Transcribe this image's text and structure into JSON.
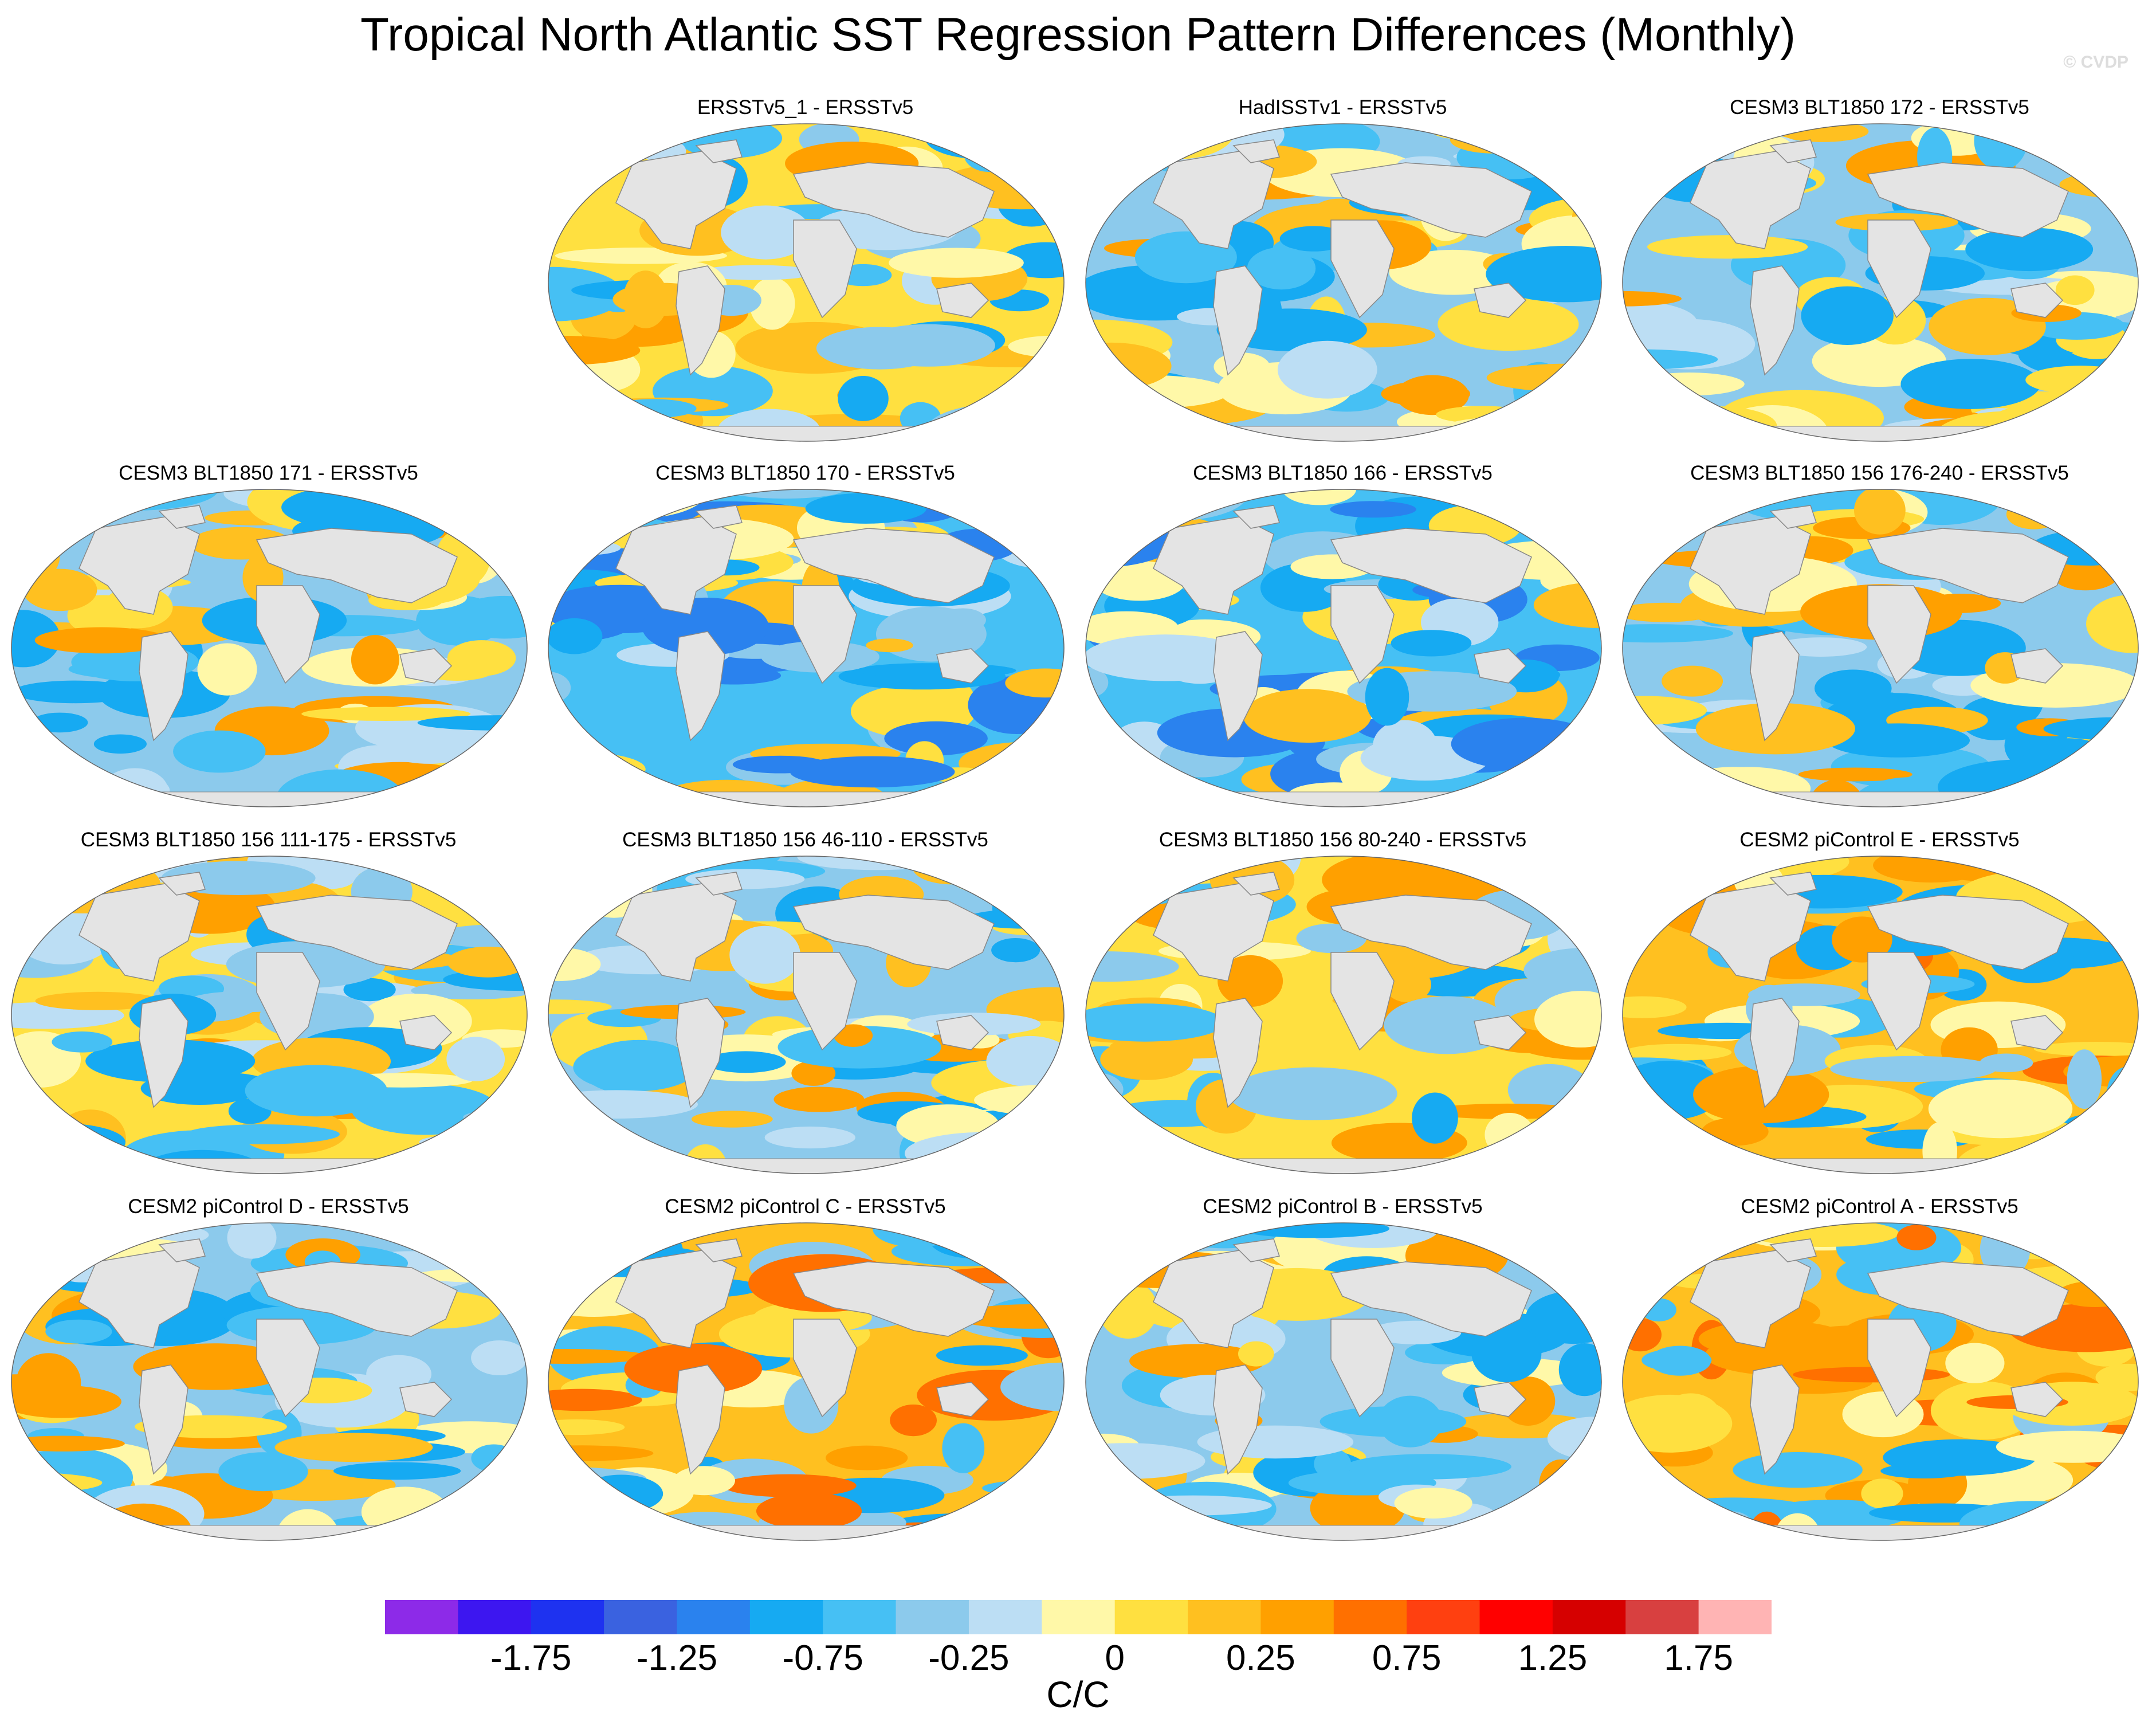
{
  "title": "Tropical North Atlantic SST Regression Pattern Differences (Monthly)",
  "watermark": "© CVDP",
  "panels": [
    {
      "label": "ERSSTv5_1 - ERSSTv5",
      "pattern": "mixed-warm"
    },
    {
      "label": "HadISSTv1 - ERSSTv5",
      "pattern": "mixed-cool"
    },
    {
      "label": "CESM3 BLT1850 172 - ERSSTv5",
      "pattern": "mixed-cool"
    },
    {
      "label": "CESM3 BLT1850 171 - ERSSTv5",
      "pattern": "mixed-cool"
    },
    {
      "label": "CESM3 BLT1850 170 - ERSSTv5",
      "pattern": "cool"
    },
    {
      "label": "CESM3 BLT1850 166 - ERSSTv5",
      "pattern": "cool"
    },
    {
      "label": "CESM3 BLT1850 156 176-240 - ERSSTv5",
      "pattern": "mixed-cool"
    },
    {
      "label": "CESM3 BLT1850 156 111-175 - ERSSTv5",
      "pattern": "mixed-warm"
    },
    {
      "label": "CESM3 BLT1850 156 46-110 - ERSSTv5",
      "pattern": "mixed-cool"
    },
    {
      "label": "CESM3 BLT1850 156 80-240 - ERSSTv5",
      "pattern": "mixed-warm"
    },
    {
      "label": "CESM2 piControl E - ERSSTv5",
      "pattern": "warm"
    },
    {
      "label": "CESM2 piControl D - ERSSTv5",
      "pattern": "mixed-cool"
    },
    {
      "label": "CESM2 piControl C - ERSSTv5",
      "pattern": "warm"
    },
    {
      "label": "CESM2 piControl B - ERSSTv5",
      "pattern": "mixed-cool"
    },
    {
      "label": "CESM2 piControl A - ERSSTv5",
      "pattern": "warm"
    }
  ],
  "colorbar": {
    "colors": [
      "#8d2ae8",
      "#3d16f0",
      "#1e32f0",
      "#3a62e0",
      "#2a82ee",
      "#16aaf2",
      "#46c0f4",
      "#8ccaec",
      "#bcdef4",
      "#fff8a8",
      "#ffe040",
      "#ffc020",
      "#ffa000",
      "#ff7000",
      "#ff4010",
      "#ff0000",
      "#d60000",
      "#d84040",
      "#ffb4b4"
    ],
    "tick_labels": [
      "-1.75",
      "-1.25",
      "-0.75",
      "-0.25",
      "0",
      "0.25",
      "0.75",
      "1.25",
      "1.75"
    ],
    "units": "C/C"
  }
}
